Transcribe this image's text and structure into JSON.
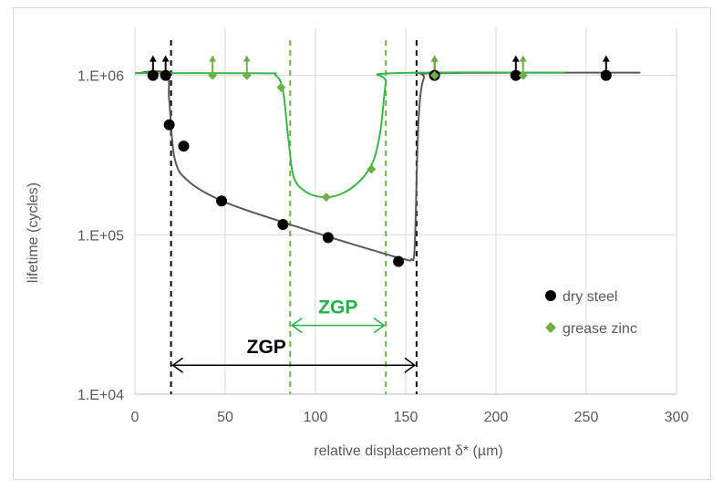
{
  "chart_data": {
    "type": "scatter",
    "xlabel": "relative displacement δ* (µm)",
    "ylabel": "lifetime (cycles)",
    "xlim": [
      0,
      300
    ],
    "ylim": [
      10000,
      2000000
    ],
    "yscale": "log",
    "x_ticks": [
      "0",
      "50",
      "100",
      "150",
      "200",
      "250",
      "300"
    ],
    "x_tick_values": [
      0,
      50,
      100,
      150,
      200,
      250,
      300
    ],
    "y_ticks": [
      "1.E+04",
      "1.E+05",
      "1.E+06"
    ],
    "y_tick_values": [
      10000,
      100000,
      1000000
    ],
    "grid": true,
    "legend_position": "right",
    "series": [
      {
        "name": "dry steel",
        "color": "#000000",
        "marker": "circle",
        "points": [
          {
            "x": 10,
            "y": 1000000,
            "runout": true
          },
          {
            "x": 17,
            "y": 1000000,
            "runout": true
          },
          {
            "x": 19,
            "y": 490000
          },
          {
            "x": 27,
            "y": 360000
          },
          {
            "x": 48,
            "y": 163000
          },
          {
            "x": 82,
            "y": 116000
          },
          {
            "x": 107,
            "y": 96000
          },
          {
            "x": 146,
            "y": 68000
          },
          {
            "x": 166,
            "y": 1000000,
            "runout": true
          },
          {
            "x": 211,
            "y": 1000000,
            "runout": true
          },
          {
            "x": 261,
            "y": 1000000,
            "runout": true
          }
        ],
        "fit": {
          "color": "#595959",
          "points": [
            [
              0,
              1030000
            ],
            [
              17,
              1030000
            ],
            [
              19,
              700000
            ],
            [
              22,
              300000
            ],
            [
              30,
              215000
            ],
            [
              50,
              160000
            ],
            [
              80,
              122000
            ],
            [
              110,
              95000
            ],
            [
              140,
              75000
            ],
            [
              150,
              70000
            ],
            [
              153,
              70000
            ],
            [
              155,
              85000
            ],
            [
              157,
              500000
            ],
            [
              160,
              960000
            ],
            [
              166,
              1030000
            ],
            [
              280,
              1040000
            ]
          ]
        }
      },
      {
        "name": "grease zinc",
        "color": "#70ad47",
        "marker": "diamond",
        "points": [
          {
            "x": 43,
            "y": 1000000,
            "runout": true
          },
          {
            "x": 62,
            "y": 1000000,
            "runout": true
          },
          {
            "x": 81,
            "y": 840000
          },
          {
            "x": 106,
            "y": 172000
          },
          {
            "x": 131,
            "y": 258000
          },
          {
            "x": 166,
            "y": 1000000,
            "runout": true
          },
          {
            "x": 215,
            "y": 1000000,
            "runout": true
          }
        ],
        "fit": {
          "color": "#3cb54a",
          "points": [
            [
              0,
              1030000
            ],
            [
              70,
              1030000
            ],
            [
              78,
              1000000
            ],
            [
              82,
              800000
            ],
            [
              85,
              400000
            ],
            [
              88,
              230000
            ],
            [
              95,
              185000
            ],
            [
              105,
              172000
            ],
            [
              115,
              182000
            ],
            [
              125,
              220000
            ],
            [
              132,
              290000
            ],
            [
              136,
              450000
            ],
            [
              139,
              900000
            ],
            [
              142,
              1030000
            ],
            [
              238,
              1040000
            ]
          ]
        }
      }
    ],
    "vertical_lines": [
      {
        "x": 20,
        "color": "#000000"
      },
      {
        "x": 156,
        "color": "#000000"
      },
      {
        "x": 86,
        "color": "#70ad47"
      },
      {
        "x": 139,
        "color": "#70ad47"
      }
    ],
    "annotations": [
      {
        "text": "ZGP",
        "color": "#000000",
        "x_start": 20,
        "x_end": 156,
        "y": 15200
      },
      {
        "text": "ZGP",
        "color": "#22b14c",
        "x_start": 86,
        "x_end": 139,
        "y": 27000
      }
    ]
  }
}
